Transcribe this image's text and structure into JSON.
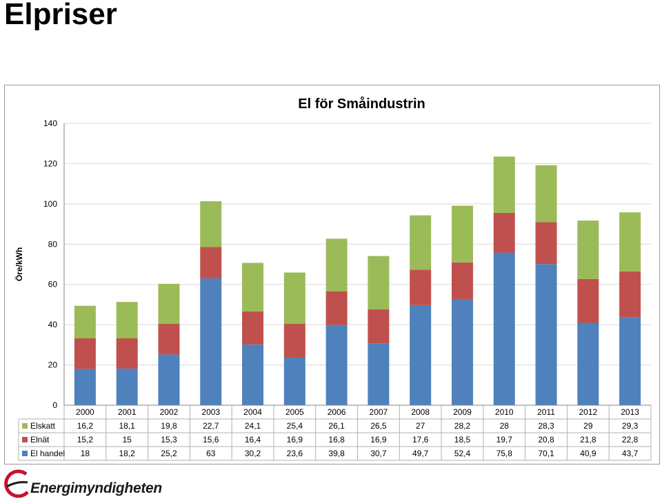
{
  "slide": {
    "title": "Elpriser"
  },
  "logo": {
    "text": "Energimyndigheten"
  },
  "colors": {
    "elskatt": "#9BBB59",
    "elnat": "#C0504D",
    "elhandel": "#4F81BD",
    "grid": "#d9d9d9",
    "axis": "#868686",
    "table_border": "#b0b0b0"
  },
  "chart_data": {
    "type": "bar",
    "stacked": true,
    "title": "El för Småindustrin",
    "xlabel": "",
    "ylabel": "Öre/kWh",
    "ylim": [
      0,
      140
    ],
    "yticks": [
      0,
      20,
      40,
      60,
      80,
      100,
      120,
      140
    ],
    "grid": true,
    "legend": "data-table",
    "categories": [
      "2000",
      "2001",
      "2002",
      "2003",
      "2004",
      "2005",
      "2006",
      "2007",
      "2008",
      "2009",
      "2010",
      "2011",
      "2012",
      "2013"
    ],
    "series": [
      {
        "name": "Elskatt",
        "color": "#9BBB59",
        "values": [
          16.2,
          18.1,
          19.8,
          22.7,
          24.1,
          25.4,
          26.1,
          26.5,
          27,
          28.2,
          28,
          28.3,
          29,
          29.3
        ],
        "labels": [
          "16,2",
          "18,1",
          "19,8",
          "22,7",
          "24,1",
          "25,4",
          "26,1",
          "26,5",
          "27",
          "28,2",
          "28",
          "28,3",
          "29",
          "29,3"
        ]
      },
      {
        "name": "Elnät",
        "color": "#C0504D",
        "values": [
          15.2,
          15,
          15.3,
          15.6,
          16.4,
          16.9,
          16.8,
          16.9,
          17.6,
          18.5,
          19.7,
          20.8,
          21.8,
          22.8
        ],
        "labels": [
          "15,2",
          "15",
          "15,3",
          "15,6",
          "16,4",
          "16,9",
          "16,8",
          "16,9",
          "17,6",
          "18,5",
          "19,7",
          "20,8",
          "21,8",
          "22,8"
        ]
      },
      {
        "name": "El handel",
        "color": "#4F81BD",
        "values": [
          18,
          18.2,
          25.2,
          63,
          30.2,
          23.6,
          39.8,
          30.7,
          49.7,
          52.4,
          75.8,
          70.1,
          40.9,
          43.7
        ],
        "labels": [
          "18",
          "18,2",
          "25,2",
          "63",
          "30,2",
          "23,6",
          "39,8",
          "30,7",
          "49,7",
          "52,4",
          "75,8",
          "70,1",
          "40,9",
          "43,7"
        ]
      }
    ]
  }
}
